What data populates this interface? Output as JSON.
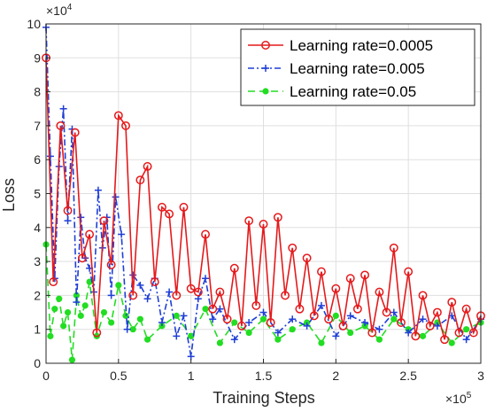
{
  "chart_data": {
    "type": "line",
    "title": "",
    "xlabel": "Training Steps",
    "ylabel": "Loss",
    "x_exponent_label": "×10",
    "x_exponent_power": "5",
    "y_exponent_label": "×10",
    "y_exponent_power": "4",
    "xlim": [
      0,
      3
    ],
    "ylim": [
      0,
      10
    ],
    "xticks": [
      "0",
      "0.5",
      "1",
      "1.5",
      "2",
      "2.5",
      "3"
    ],
    "yticks": [
      "0",
      "1",
      "2",
      "3",
      "4",
      "5",
      "6",
      "7",
      "8",
      "9",
      "10"
    ],
    "grid": true,
    "legend_position": "top-right",
    "series": [
      {
        "name": "Learning rate=0.0005",
        "color": "#e41a1c",
        "marker": "circle",
        "line": "solid",
        "x": [
          0,
          0.05,
          0.1,
          0.15,
          0.2,
          0.25,
          0.3,
          0.35,
          0.4,
          0.45,
          0.5,
          0.55,
          0.6,
          0.65,
          0.7,
          0.75,
          0.8,
          0.85,
          0.9,
          0.95,
          1.0,
          1.05,
          1.1,
          1.15,
          1.2,
          1.25,
          1.3,
          1.35,
          1.4,
          1.45,
          1.5,
          1.55,
          1.6,
          1.65,
          1.7,
          1.75,
          1.8,
          1.85,
          1.9,
          1.95,
          2.0,
          2.05,
          2.1,
          2.15,
          2.2,
          2.25,
          2.3,
          2.35,
          2.4,
          2.45,
          2.5,
          2.55,
          2.6,
          2.65,
          2.7,
          2.75,
          2.8,
          2.85,
          2.9,
          2.95,
          3.0
        ],
        "values": [
          9.0,
          2.4,
          7.0,
          4.5,
          6.8,
          3.1,
          3.8,
          0.9,
          4.2,
          2.9,
          7.3,
          7.0,
          2.0,
          5.4,
          5.8,
          2.4,
          4.6,
          4.4,
          2.0,
          4.6,
          2.2,
          2.1,
          3.8,
          1.6,
          2.1,
          1.3,
          2.8,
          1.1,
          4.2,
          1.7,
          4.1,
          1.2,
          4.3,
          2.0,
          3.4,
          1.6,
          3.1,
          1.4,
          2.7,
          1.3,
          2.2,
          1.1,
          2.5,
          1.6,
          2.6,
          0.9,
          2.1,
          1.5,
          3.4,
          1.2,
          2.7,
          0.8,
          2.0,
          1.1,
          1.5,
          0.7,
          1.8,
          0.9,
          1.6,
          0.9,
          1.4
        ]
      },
      {
        "name": "Learning rate=0.005",
        "color": "#1f3fd6",
        "marker": "plus",
        "line": "dash-dot",
        "x": [
          0,
          0.03,
          0.06,
          0.09,
          0.12,
          0.15,
          0.18,
          0.21,
          0.24,
          0.27,
          0.3,
          0.33,
          0.36,
          0.39,
          0.42,
          0.45,
          0.48,
          0.52,
          0.56,
          0.6,
          0.65,
          0.7,
          0.75,
          0.8,
          0.85,
          0.9,
          0.95,
          1.0,
          1.05,
          1.1,
          1.15,
          1.2,
          1.3,
          1.4,
          1.5,
          1.6,
          1.7,
          1.8,
          1.9,
          2.0,
          2.1,
          2.2,
          2.3,
          2.4,
          2.5,
          2.6,
          2.7,
          2.8,
          2.9,
          3.0
        ],
        "values": [
          9.9,
          6.1,
          2.5,
          5.8,
          7.5,
          4.2,
          6.9,
          1.8,
          4.3,
          3.1,
          2.8,
          2.1,
          5.1,
          3.4,
          4.3,
          2.0,
          4.9,
          3.8,
          1.0,
          2.6,
          2.3,
          1.9,
          2.5,
          1.2,
          2.1,
          0.8,
          1.4,
          0.2,
          1.9,
          2.5,
          1.3,
          1.6,
          0.7,
          1.2,
          1.5,
          0.9,
          1.3,
          1.1,
          1.7,
          0.8,
          1.4,
          1.2,
          1.0,
          1.5,
          0.9,
          1.3,
          1.1,
          1.4,
          0.7,
          1.3
        ]
      },
      {
        "name": "Learning rate=0.05",
        "color": "#22dd22",
        "marker": "dot",
        "line": "dashed",
        "x": [
          0,
          0.03,
          0.06,
          0.09,
          0.12,
          0.15,
          0.18,
          0.21,
          0.24,
          0.27,
          0.3,
          0.35,
          0.4,
          0.45,
          0.5,
          0.55,
          0.6,
          0.65,
          0.7,
          0.8,
          0.9,
          1.0,
          1.1,
          1.2,
          1.3,
          1.4,
          1.5,
          1.6,
          1.7,
          1.8,
          1.9,
          2.0,
          2.1,
          2.2,
          2.3,
          2.4,
          2.5,
          2.6,
          2.7,
          2.8,
          2.9,
          3.0
        ],
        "values": [
          3.5,
          0.8,
          1.6,
          1.9,
          1.1,
          1.5,
          0.1,
          2.0,
          1.4,
          1.7,
          2.4,
          0.8,
          1.5,
          1.2,
          2.3,
          1.4,
          1.0,
          1.3,
          0.7,
          1.1,
          1.4,
          0.8,
          1.6,
          0.6,
          1.2,
          0.9,
          1.3,
          0.7,
          1.0,
          1.2,
          0.6,
          1.4,
          0.9,
          1.1,
          0.7,
          1.3,
          1.0,
          0.8,
          1.2,
          0.6,
          1.0,
          1.2
        ]
      }
    ]
  }
}
